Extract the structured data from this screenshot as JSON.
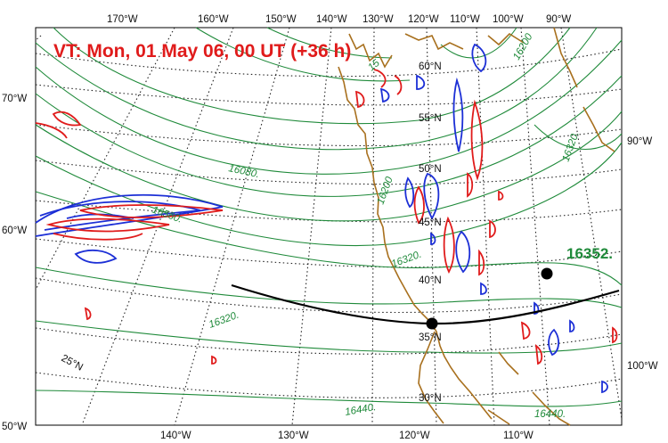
{
  "title": "VT:  Mon, 01 May 06, 00 UT (+36 h)",
  "highlight_value": "16352.",
  "colors": {
    "title": "#e01b1b",
    "contour": "#1f8a3a",
    "coastline": "#a8701e",
    "positive_field": "#e01b1b",
    "negative_field": "#1c2fd6",
    "trajectory": "#000000"
  },
  "longitude_labels_top": [
    "170°W",
    "160°W",
    "150°W",
    "140°W",
    "130°W",
    "120°W",
    "110°W",
    "100°W",
    "90°W"
  ],
  "longitude_labels_bottom": [
    "140°W",
    "130°W",
    "120°W",
    "110°W"
  ],
  "longitude_labels_left": [
    "70°W",
    "60°W",
    "50°W"
  ],
  "longitude_labels_right": [
    "90°W",
    "100°W"
  ],
  "latitude_labels": [
    "60°N",
    "55°N",
    "50°N",
    "45°N",
    "40°N",
    "35°N",
    "30°N",
    "25°N"
  ],
  "contour_labels": [
    "16080.",
    "16200",
    "16320.",
    "16320.",
    "16320.",
    "16440.",
    "16440.",
    "16560.",
    "16200",
    "15"
  ],
  "markers": [
    {
      "name": "trajectory-point-west",
      "description_value": "35°N"
    },
    {
      "name": "trajectory-point-east",
      "description_value": "40°N"
    }
  ]
}
